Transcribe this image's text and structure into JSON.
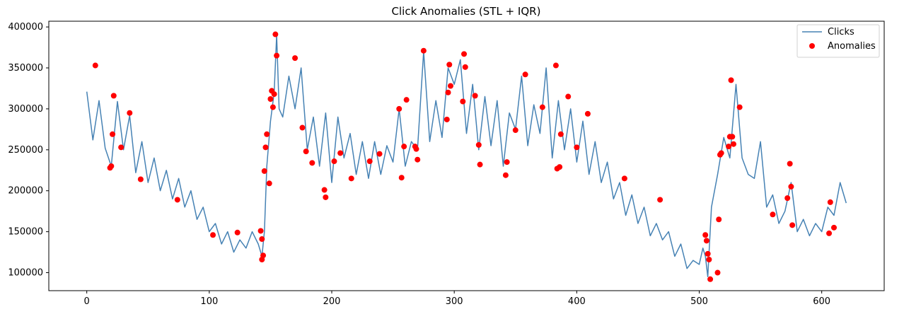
{
  "chart_data": {
    "type": "line",
    "title": "Click Anomalies (STL + IQR)",
    "xlabel": "",
    "ylabel": "",
    "xlim": [
      -31,
      651
    ],
    "ylim": [
      78000,
      407000
    ],
    "xticks": [
      0,
      100,
      200,
      300,
      400,
      500,
      600
    ],
    "yticks": [
      100000,
      150000,
      200000,
      250000,
      300000,
      350000,
      400000
    ],
    "ytick_labels": [
      "100000",
      "150000",
      "200000",
      "250000",
      "300000",
      "350000",
      "400000"
    ],
    "grid": false,
    "legend": {
      "position": "top-right",
      "entries": [
        "Clicks",
        "Anomalies"
      ]
    },
    "colors": {
      "line": "#4682b4",
      "anomaly": "#ff0000"
    },
    "series": [
      {
        "name": "Clicks",
        "x": [
          0,
          5,
          10,
          15,
          20,
          25,
          30,
          35,
          40,
          45,
          50,
          55,
          60,
          65,
          70,
          75,
          80,
          85,
          90,
          95,
          100,
          105,
          110,
          115,
          120,
          125,
          130,
          135,
          140,
          143,
          145,
          147,
          150,
          153,
          155,
          157,
          160,
          165,
          170,
          175,
          180,
          185,
          190,
          195,
          200,
          205,
          210,
          215,
          220,
          225,
          230,
          235,
          240,
          245,
          250,
          255,
          260,
          265,
          270,
          275,
          280,
          285,
          290,
          295,
          300,
          305,
          310,
          315,
          320,
          325,
          330,
          335,
          340,
          345,
          350,
          355,
          360,
          365,
          370,
          375,
          380,
          385,
          390,
          395,
          400,
          405,
          410,
          415,
          420,
          425,
          430,
          435,
          440,
          445,
          450,
          455,
          460,
          465,
          470,
          475,
          480,
          485,
          490,
          495,
          500,
          503,
          505,
          507,
          510,
          515,
          520,
          525,
          530,
          535,
          540,
          545,
          550,
          555,
          560,
          565,
          570,
          575,
          580,
          585,
          590,
          595,
          600,
          605,
          610,
          615,
          620
        ],
        "values": [
          321000,
          262000,
          310000,
          252000,
          230000,
          309000,
          250000,
          292000,
          222000,
          260000,
          210000,
          240000,
          200000,
          225000,
          190000,
          215000,
          180000,
          200000,
          165000,
          180000,
          150000,
          160000,
          135000,
          150000,
          125000,
          140000,
          130000,
          150000,
          135000,
          120000,
          150000,
          230000,
          285000,
          320000,
          390000,
          300000,
          290000,
          340000,
          300000,
          350000,
          250000,
          290000,
          230000,
          295000,
          210000,
          290000,
          240000,
          270000,
          220000,
          260000,
          215000,
          260000,
          220000,
          255000,
          235000,
          300000,
          230000,
          260000,
          250000,
          370000,
          260000,
          310000,
          265000,
          350000,
          330000,
          360000,
          270000,
          330000,
          250000,
          315000,
          255000,
          310000,
          230000,
          295000,
          275000,
          340000,
          255000,
          305000,
          270000,
          350000,
          240000,
          310000,
          250000,
          300000,
          235000,
          285000,
          220000,
          260000,
          210000,
          235000,
          190000,
          210000,
          170000,
          195000,
          160000,
          180000,
          145000,
          160000,
          140000,
          150000,
          120000,
          135000,
          105000,
          115000,
          110000,
          130000,
          120000,
          95000,
          180000,
          220000,
          265000,
          240000,
          330000,
          240000,
          220000,
          215000,
          260000,
          180000,
          195000,
          160000,
          175000,
          210000,
          150000,
          165000,
          145000,
          160000,
          150000,
          180000,
          170000,
          210000,
          185000
        ]
      },
      {
        "name": "Anomalies",
        "x": [
          7,
          19,
          20,
          21,
          22,
          28,
          35,
          44,
          74,
          103,
          123,
          142,
          143,
          143,
          144,
          145,
          146,
          147,
          149,
          150,
          151,
          152,
          153,
          154,
          155,
          170,
          176,
          179,
          184,
          194,
          195,
          202,
          207,
          216,
          231,
          239,
          255,
          257,
          259,
          261,
          268,
          269,
          270,
          275,
          294,
          295,
          296,
          297,
          307,
          308,
          309,
          317,
          320,
          321,
          342,
          343,
          350,
          358,
          372,
          383,
          384,
          386,
          387,
          393,
          400,
          409,
          439,
          468,
          505,
          506,
          507,
          508,
          509,
          515,
          516,
          517,
          518,
          524,
          525,
          526,
          527,
          528,
          533,
          560,
          572,
          574,
          575,
          576,
          606,
          607,
          610
        ],
        "values": [
          353000,
          228000,
          230000,
          269000,
          316000,
          253000,
          295000,
          214000,
          189000,
          146000,
          149000,
          151000,
          141000,
          116000,
          121000,
          224000,
          253000,
          269000,
          209000,
          312000,
          322000,
          302000,
          318000,
          391000,
          365000,
          362000,
          277000,
          248000,
          234000,
          201000,
          192000,
          236000,
          246000,
          215000,
          236000,
          245000,
          300000,
          216000,
          254000,
          311000,
          254000,
          251000,
          238000,
          371000,
          287000,
          320000,
          354000,
          328000,
          309000,
          367000,
          351000,
          316000,
          256000,
          232000,
          219000,
          235000,
          274000,
          342000,
          302000,
          353000,
          227000,
          229000,
          269000,
          315000,
          253000,
          294000,
          215000,
          189000,
          146000,
          139000,
          123000,
          116000,
          92000,
          100000,
          165000,
          244000,
          246000,
          254000,
          266000,
          335000,
          266000,
          257000,
          302000,
          171000,
          191000,
          233000,
          205000,
          158000,
          148000,
          186000,
          155000
        ]
      }
    ]
  }
}
